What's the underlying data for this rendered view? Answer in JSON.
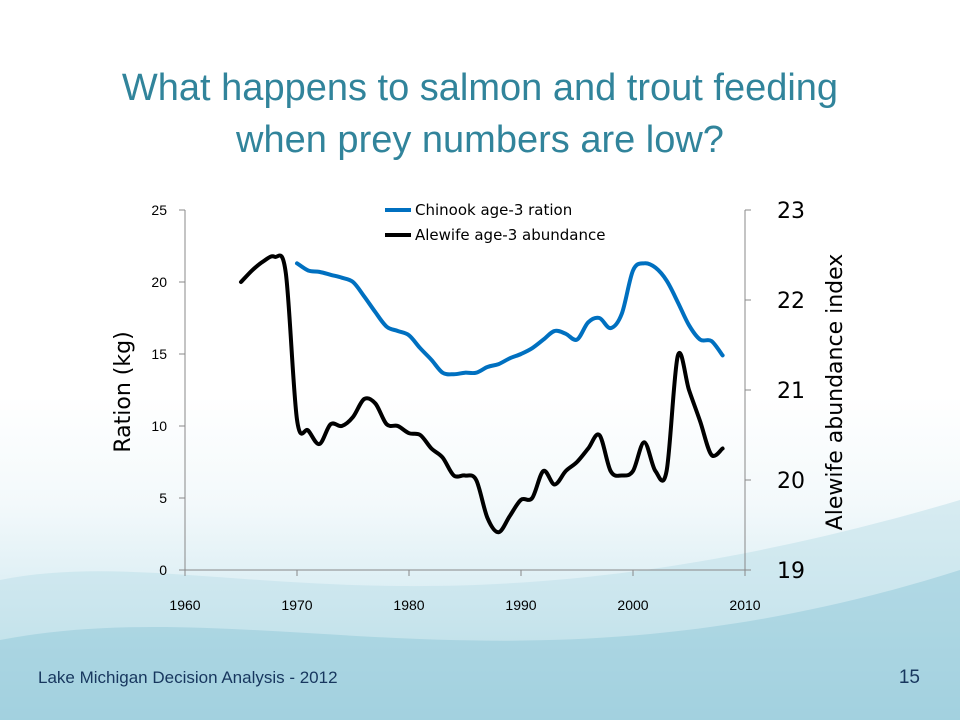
{
  "slide": {
    "title_line1": "What happens to salmon and trout feeding",
    "title_line2": "when prey numbers are low?",
    "footer": "Lake Michigan Decision Analysis - 2012",
    "page_number": "15"
  },
  "colors": {
    "title": "#31849b",
    "chinook": "#0070c0",
    "alewife": "#000000",
    "footer": "#17375e"
  },
  "chart_data": {
    "type": "line",
    "xlim": [
      1960,
      2010
    ],
    "x_ticks": [
      "1960",
      "1970",
      "1980",
      "1990",
      "2000",
      "2010"
    ],
    "ylabel": "Ration (kg)",
    "ylim": [
      0,
      25
    ],
    "y_ticks": [
      "0",
      "5",
      "10",
      "15",
      "20",
      "25"
    ],
    "y2label": "Alewife abundance index",
    "y2lim": [
      19,
      23
    ],
    "y2_ticks": [
      "19",
      "20",
      "21",
      "22",
      "23"
    ],
    "legend_position": "top-center",
    "grid": false,
    "series": [
      {
        "name": "Chinook age-3 ration",
        "axis": "left",
        "color": "#0070c0",
        "x": [
          1970,
          1971,
          1972,
          1973,
          1974,
          1975,
          1976,
          1977,
          1978,
          1979,
          1980,
          1981,
          1982,
          1983,
          1984,
          1985,
          1986,
          1987,
          1988,
          1989,
          1990,
          1991,
          1992,
          1993,
          1994,
          1995,
          1996,
          1997,
          1998,
          1999,
          2000,
          2001,
          2002,
          2003,
          2004,
          2005,
          2006,
          2007,
          2008
        ],
        "values": [
          21.3,
          20.8,
          20.7,
          20.5,
          20.3,
          20.0,
          19.0,
          17.9,
          16.9,
          16.6,
          16.3,
          15.4,
          14.6,
          13.7,
          13.6,
          13.7,
          13.7,
          14.1,
          14.3,
          14.7,
          15.0,
          15.4,
          16.0,
          16.6,
          16.4,
          16.0,
          17.2,
          17.5,
          16.8,
          17.8,
          20.8,
          21.3,
          21.0,
          20.1,
          18.6,
          17.0,
          16.0,
          15.9,
          14.9
        ]
      },
      {
        "name": "Alewife age-3 abundance",
        "axis": "right",
        "color": "#000000",
        "x": [
          1965,
          1966,
          1967,
          1968,
          1969,
          1970,
          1971,
          1972,
          1973,
          1974,
          1975,
          1976,
          1977,
          1978,
          1979,
          1980,
          1981,
          1982,
          1983,
          1984,
          1985,
          1986,
          1987,
          1988,
          1989,
          1990,
          1991,
          1992,
          1993,
          1994,
          1995,
          1996,
          1997,
          1998,
          1999,
          2000,
          2001,
          2002,
          2003,
          2004,
          2005,
          2006,
          2007,
          2008
        ],
        "values": [
          22.2,
          22.33,
          22.43,
          22.48,
          22.3,
          20.67,
          20.55,
          20.4,
          20.62,
          20.6,
          20.7,
          20.9,
          20.85,
          20.62,
          20.6,
          20.52,
          20.5,
          20.35,
          20.25,
          20.05,
          20.05,
          20.0,
          19.58,
          19.42,
          19.6,
          19.78,
          19.8,
          20.1,
          19.95,
          20.1,
          20.2,
          20.35,
          20.5,
          20.1,
          20.05,
          20.1,
          20.42,
          20.1,
          20.1,
          21.38,
          21.0,
          20.65,
          20.28,
          20.35
        ]
      }
    ]
  }
}
